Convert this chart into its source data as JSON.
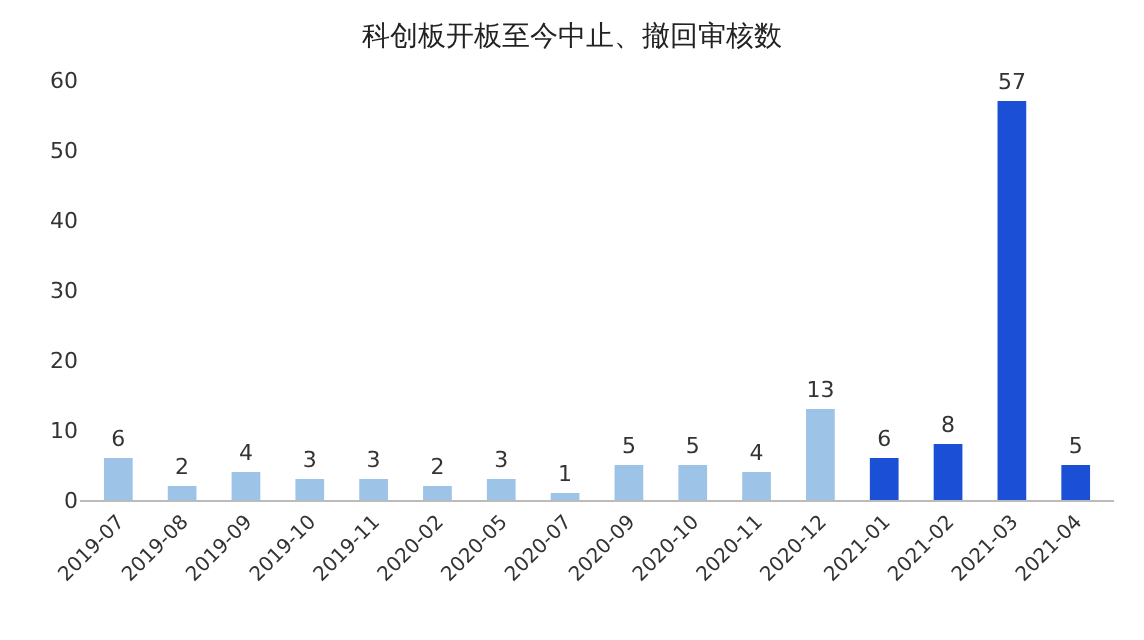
{
  "chart_data": {
    "type": "bar",
    "title": "科创板开板至今中止、撤回审核数",
    "categories": [
      "2019-07",
      "2019-08",
      "2019-09",
      "2019-10",
      "2019-11",
      "2020-02",
      "2020-05",
      "2020-07",
      "2020-09",
      "2020-10",
      "2020-11",
      "2020-12",
      "2021-01",
      "2021-02",
      "2021-03",
      "2021-04"
    ],
    "values": [
      6,
      2,
      4,
      3,
      3,
      2,
      3,
      1,
      5,
      5,
      4,
      13,
      6,
      8,
      57,
      5
    ],
    "colors": [
      "#9dc3e6",
      "#9dc3e6",
      "#9dc3e6",
      "#9dc3e6",
      "#9dc3e6",
      "#9dc3e6",
      "#9dc3e6",
      "#9dc3e6",
      "#9dc3e6",
      "#9dc3e6",
      "#9dc3e6",
      "#9dc3e6",
      "#1a4fd6",
      "#1a4fd6",
      "#1a4fd6",
      "#1a4fd6"
    ],
    "ylim": [
      0,
      60
    ],
    "yticks": [
      0,
      10,
      20,
      30,
      40,
      50,
      60
    ],
    "data_labels": true,
    "grid": false,
    "legend": false
  }
}
